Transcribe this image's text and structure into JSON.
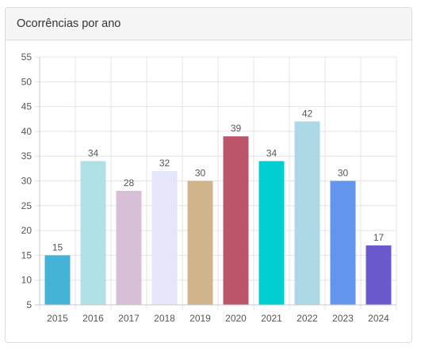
{
  "panel": {
    "title": "Ocorrências por ano"
  },
  "chart_data": {
    "type": "bar",
    "categories": [
      "2015",
      "2016",
      "2017",
      "2018",
      "2019",
      "2020",
      "2021",
      "2022",
      "2023",
      "2024"
    ],
    "values": [
      15,
      34,
      28,
      32,
      30,
      39,
      34,
      42,
      30,
      17
    ],
    "colors": [
      "#45b3d6",
      "#b0e0e6",
      "#d8bfd8",
      "#e6e6fa",
      "#d2b48c",
      "#bc5569",
      "#00ced1",
      "#add8e6",
      "#6495ed",
      "#6a5acd"
    ],
    "ylim": [
      5,
      55
    ],
    "ytick_step": 5,
    "grid": true,
    "title": "",
    "xlabel": "",
    "ylabel": ""
  }
}
